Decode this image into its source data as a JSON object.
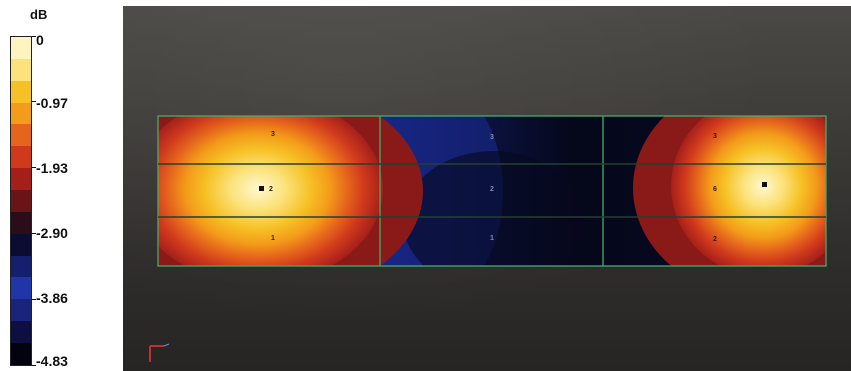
{
  "legend": {
    "unit": "dB",
    "labels": [
      "0",
      "-0.97",
      "-1.93",
      "-2.90",
      "-3.86",
      "-4.83"
    ],
    "colors": [
      "#fff4c0",
      "#fbe27a",
      "#f6c126",
      "#f39b1a",
      "#e5651c",
      "#d03a1c",
      "#a51f1a",
      "#6a1416",
      "#2a0d18",
      "#0c0c32",
      "#141f6e",
      "#2035a8",
      "#1a247a",
      "#0c0f40",
      "#030310"
    ]
  },
  "map": {
    "point_labels": {
      "left": [
        "3",
        "2",
        "1"
      ],
      "mid": [
        "3",
        "2",
        "1"
      ],
      "right": [
        "3",
        "6",
        "2"
      ]
    }
  }
}
